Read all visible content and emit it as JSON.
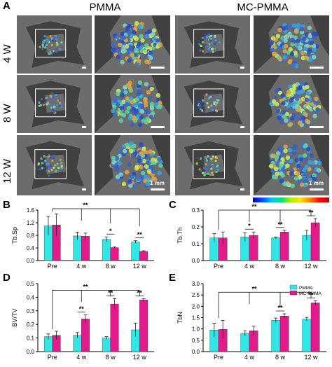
{
  "panel_labels": {
    "a": "A",
    "b": "B",
    "c": "C",
    "d": "D",
    "e": "E"
  },
  "column_headers": [
    "PMMA",
    "MC-PMMA"
  ],
  "row_headers": [
    "4 W",
    "8 W",
    "12 W"
  ],
  "scale_label": "1 mm",
  "colors": {
    "pmma": "#33e6e6",
    "mc_pmma": "#e6198c",
    "tile_bg": "#6c6c6c"
  },
  "chart_data": [
    {
      "type": "bar",
      "panel": "B",
      "ylabel": "Tb.Sp",
      "categories": [
        "Pre",
        "4 w",
        "8 w",
        "12 w"
      ],
      "ylim": [
        0,
        1.6
      ],
      "yticks": [
        0.0,
        0.4,
        0.8,
        1.2,
        1.6
      ],
      "series": [
        {
          "name": "PMMA",
          "values": [
            1.1,
            0.78,
            0.67,
            0.59
          ],
          "errors": [
            0.3,
            0.12,
            0.08,
            0.04
          ]
        },
        {
          "name": "MC-PMMA",
          "values": [
            1.13,
            0.77,
            0.41,
            0.29
          ],
          "errors": [
            0.35,
            0.1,
            0.02,
            0.02
          ]
        }
      ],
      "annotations": [
        {
          "text": "**",
          "from": 0,
          "to": [
            1,
            2,
            3
          ]
        },
        {
          "text": "*",
          "category": 2
        },
        {
          "text": "**",
          "category": 3
        }
      ]
    },
    {
      "type": "bar",
      "panel": "C",
      "ylabel": "Tb.Th",
      "categories": [
        "Pre",
        "4 w",
        "8 w",
        "12 w"
      ],
      "ylim": [
        0,
        0.3
      ],
      "yticks": [
        0.0,
        0.1,
        0.2,
        0.3
      ],
      "series": [
        {
          "name": "PMMA",
          "values": [
            0.135,
            0.14,
            0.135,
            0.15
          ],
          "errors": [
            0.025,
            0.025,
            0.005,
            0.03
          ]
        },
        {
          "name": "MC-PMMA",
          "values": [
            0.135,
            0.15,
            0.17,
            0.225
          ],
          "errors": [
            0.035,
            0.02,
            0.01,
            0.025
          ]
        }
      ],
      "annotations": [
        {
          "text": "**",
          "from": 0,
          "to": [
            1,
            2,
            3
          ]
        },
        {
          "text": "*",
          "category": 1
        },
        {
          "text": "**",
          "category": 2
        },
        {
          "text": "**",
          "category": 3
        }
      ]
    },
    {
      "type": "bar",
      "panel": "D",
      "ylabel": "BV/TV",
      "categories": [
        "Pre",
        "4 w",
        "8 w",
        "12 w"
      ],
      "ylim": [
        0,
        0.5
      ],
      "yticks": [
        0.0,
        0.1,
        0.2,
        0.3,
        0.4,
        0.5
      ],
      "series": [
        {
          "name": "PMMA",
          "values": [
            0.11,
            0.12,
            0.1,
            0.16
          ],
          "errors": [
            0.02,
            0.02,
            0.01,
            0.05
          ]
        },
        {
          "name": "MC-PMMA",
          "values": [
            0.12,
            0.24,
            0.35,
            0.38
          ],
          "errors": [
            0.03,
            0.03,
            0.04,
            0.01
          ]
        }
      ],
      "annotations": [
        {
          "text": "**",
          "from": 0,
          "to": [
            1,
            2,
            3
          ]
        },
        {
          "text": "**",
          "category": 1
        },
        {
          "text": "**",
          "category": 2
        },
        {
          "text": "**",
          "category": 3
        }
      ]
    },
    {
      "type": "bar",
      "panel": "E",
      "ylabel": "TbN",
      "categories": [
        "Pre",
        "4 w",
        "8 w",
        "12 w"
      ],
      "ylim": [
        0,
        3.0
      ],
      "yticks": [
        0.0,
        0.5,
        1.0,
        1.5,
        2.0,
        2.5,
        3.0
      ],
      "legend": {
        "position": "top-right",
        "entries": [
          "PMMA",
          "MC-PMMA"
        ]
      },
      "series": [
        {
          "name": "PMMA",
          "values": [
            0.95,
            0.8,
            1.38,
            1.43
          ],
          "errors": [
            0.3,
            0.12,
            0.1,
            0.08
          ]
        },
        {
          "name": "MC-PMMA",
          "values": [
            0.98,
            0.92,
            1.57,
            2.15
          ],
          "errors": [
            0.4,
            0.2,
            0.1,
            0.1
          ]
        }
      ],
      "annotations": [
        {
          "text": "**",
          "from": 0,
          "to": [
            1,
            2,
            3
          ]
        },
        {
          "text": "**",
          "category": 2
        },
        {
          "text": "**",
          "category": 3
        }
      ]
    }
  ]
}
